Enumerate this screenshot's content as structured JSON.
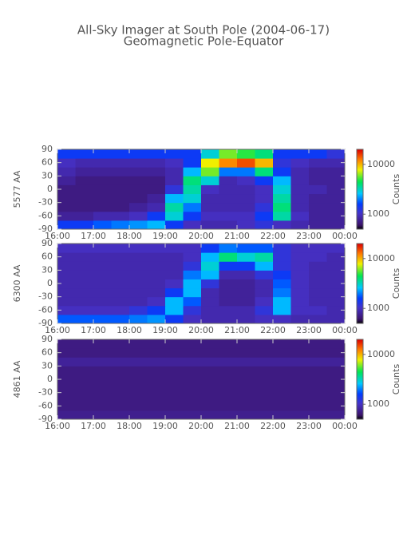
{
  "title": "All-Sky Imager at South Pole (2004-06-17)",
  "subtitle": "Geomagnetic Pole-Equator",
  "chart_data": [
    {
      "type": "heatmap",
      "ylabel": "5577 AA",
      "zlabel": "Counts",
      "log_color": true,
      "xlim": [
        16,
        24
      ],
      "xticks": [
        {
          "value": 16,
          "label": "16:00"
        },
        {
          "value": 17,
          "label": "17:00"
        },
        {
          "value": 18,
          "label": "18:00"
        },
        {
          "value": 19,
          "label": "19:00"
        },
        {
          "value": 20,
          "label": "20:00"
        },
        {
          "value": 21,
          "label": "21:00"
        },
        {
          "value": 22,
          "label": "22:00"
        },
        {
          "value": 23,
          "label": "23:00"
        },
        {
          "value": 24,
          "label": "00:00"
        }
      ],
      "ylim": [
        -90,
        90
      ],
      "yticks": [
        90,
        60,
        30,
        0,
        -30,
        -60,
        -90
      ],
      "zlim": [
        500,
        20000
      ],
      "zticks": [
        1000,
        10000
      ],
      "z": [
        [
          1500,
          1500,
          1800,
          2000,
          2200,
          2500,
          1500,
          1000,
          900,
          900,
          1000,
          1200,
          1000,
          900,
          800,
          800
        ],
        [
          800,
          800,
          900,
          900,
          1000,
          1500,
          3000,
          1500,
          1000,
          1000,
          1000,
          1500,
          3500,
          1000,
          800,
          800
        ],
        [
          700,
          700,
          700,
          700,
          800,
          900,
          3500,
          2000,
          900,
          900,
          900,
          1200,
          4000,
          900,
          800,
          800
        ],
        [
          700,
          700,
          700,
          700,
          700,
          800,
          2500,
          3000,
          900,
          900,
          900,
          1000,
          3500,
          900,
          800,
          800
        ],
        [
          700,
          700,
          700,
          700,
          700,
          700,
          1200,
          3500,
          1000,
          900,
          900,
          1000,
          3000,
          900,
          900,
          800
        ],
        [
          800,
          700,
          700,
          700,
          700,
          700,
          900,
          4000,
          3000,
          900,
          1000,
          1500,
          2500,
          900,
          800,
          800
        ],
        [
          900,
          800,
          800,
          800,
          800,
          800,
          900,
          2500,
          6000,
          2000,
          2000,
          4000,
          1500,
          900,
          800,
          800
        ],
        [
          1000,
          900,
          900,
          900,
          900,
          900,
          1000,
          1500,
          8000,
          12000,
          15000,
          10000,
          1200,
          1000,
          900,
          900
        ],
        [
          1500,
          1500,
          1500,
          1500,
          1500,
          1500,
          1500,
          1500,
          3000,
          6000,
          5000,
          4000,
          1500,
          1500,
          1500,
          1200
        ]
      ]
    },
    {
      "type": "heatmap",
      "ylabel": "6300 AA",
      "zlabel": "Counts",
      "log_color": true,
      "xlim": [
        16,
        24
      ],
      "xticks": [
        {
          "value": 16,
          "label": "16:00"
        },
        {
          "value": 17,
          "label": "17:00"
        },
        {
          "value": 18,
          "label": "18:00"
        },
        {
          "value": 19,
          "label": "19:00"
        },
        {
          "value": 20,
          "label": "20:00"
        },
        {
          "value": 21,
          "label": "21:00"
        },
        {
          "value": 22,
          "label": "22:00"
        },
        {
          "value": 23,
          "label": "23:00"
        },
        {
          "value": 24,
          "label": "00:00"
        }
      ],
      "ylim": [
        -90,
        90
      ],
      "yticks": [
        90,
        60,
        30,
        0,
        -30,
        -60,
        -90
      ],
      "zlim": [
        500,
        20000
      ],
      "zticks": [
        1000,
        10000
      ],
      "z": [
        [
          1800,
          1800,
          1800,
          1800,
          2000,
          2200,
          1500,
          1000,
          900,
          900,
          900,
          1000,
          1000,
          900,
          900,
          900
        ],
        [
          1000,
          1000,
          1000,
          1000,
          1200,
          1500,
          2500,
          1200,
          900,
          900,
          900,
          1200,
          2500,
          1000,
          1000,
          900
        ],
        [
          900,
          900,
          900,
          900,
          900,
          1000,
          2500,
          1800,
          900,
          800,
          800,
          1000,
          2500,
          1000,
          900,
          900
        ],
        [
          900,
          900,
          900,
          900,
          900,
          900,
          1500,
          2500,
          900,
          800,
          800,
          900,
          2000,
          1000,
          900,
          900
        ],
        [
          900,
          900,
          900,
          900,
          900,
          900,
          1000,
          2500,
          1200,
          800,
          800,
          900,
          1800,
          1000,
          900,
          900
        ],
        [
          900,
          900,
          900,
          900,
          900,
          900,
          900,
          2000,
          2500,
          900,
          900,
          1200,
          1500,
          1000,
          900,
          900
        ],
        [
          900,
          900,
          900,
          900,
          900,
          900,
          900,
          1200,
          3000,
          1500,
          1500,
          2500,
          1200,
          1000,
          900,
          900
        ],
        [
          900,
          900,
          900,
          900,
          900,
          900,
          900,
          1000,
          2500,
          4000,
          3000,
          3500,
          1200,
          1000,
          1000,
          900
        ],
        [
          1000,
          1000,
          1000,
          1000,
          1000,
          1000,
          1000,
          1000,
          1500,
          2000,
          1800,
          1800,
          1200,
          1000,
          1000,
          1000
        ]
      ]
    },
    {
      "type": "heatmap",
      "ylabel": "4861 AA",
      "zlabel": "Counts",
      "log_color": true,
      "xlim": [
        16,
        24
      ],
      "xticks": [
        {
          "value": 16,
          "label": "16:00"
        },
        {
          "value": 17,
          "label": "17:00"
        },
        {
          "value": 18,
          "label": "18:00"
        },
        {
          "value": 19,
          "label": "19:00"
        },
        {
          "value": 20,
          "label": "20:00"
        },
        {
          "value": 21,
          "label": "21:00"
        },
        {
          "value": 22,
          "label": "22:00"
        },
        {
          "value": 23,
          "label": "23:00"
        },
        {
          "value": 24,
          "label": "00:00"
        }
      ],
      "ylim": [
        -90,
        90
      ],
      "yticks": [
        90,
        60,
        30,
        0,
        -30,
        -60,
        -90
      ],
      "zlim": [
        500,
        20000
      ],
      "zticks": [
        1000,
        10000
      ],
      "z": [
        [
          750,
          750,
          750,
          750,
          750,
          750,
          750,
          750,
          750,
          750,
          750,
          750,
          750,
          750,
          750,
          750
        ],
        [
          700,
          700,
          700,
          700,
          700,
          700,
          700,
          700,
          700,
          700,
          700,
          700,
          700,
          700,
          700,
          700
        ],
        [
          700,
          700,
          700,
          700,
          700,
          700,
          700,
          700,
          700,
          700,
          700,
          700,
          700,
          700,
          700,
          700
        ],
        [
          700,
          700,
          700,
          700,
          700,
          700,
          700,
          700,
          700,
          700,
          700,
          700,
          700,
          700,
          700,
          700
        ],
        [
          700,
          700,
          700,
          700,
          700,
          700,
          700,
          700,
          700,
          700,
          700,
          700,
          700,
          700,
          700,
          700
        ],
        [
          700,
          700,
          700,
          700,
          700,
          700,
          700,
          700,
          700,
          700,
          700,
          700,
          700,
          700,
          700,
          700
        ],
        [
          800,
          800,
          800,
          800,
          800,
          800,
          800,
          800,
          800,
          800,
          800,
          800,
          800,
          800,
          800,
          800
        ],
        [
          700,
          700,
          700,
          700,
          700,
          700,
          700,
          700,
          700,
          700,
          700,
          700,
          700,
          700,
          700,
          700
        ],
        [
          700,
          700,
          700,
          700,
          700,
          700,
          700,
          700,
          700,
          700,
          700,
          700,
          700,
          700,
          700,
          700
        ]
      ]
    }
  ]
}
